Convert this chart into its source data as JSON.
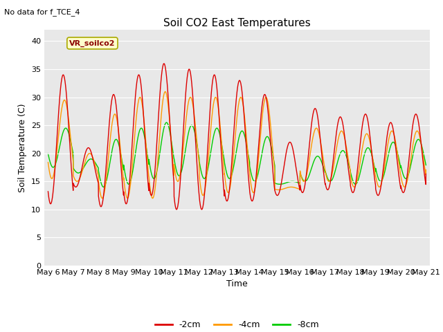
{
  "title": "Soil CO2 East Temperatures",
  "no_data_text": "No data for f_TCE_4",
  "annotation_text": "VR_soilco2",
  "xlabel": "Time",
  "ylabel": "Soil Temperature (C)",
  "ylim": [
    0,
    42
  ],
  "yticks": [
    0,
    5,
    10,
    15,
    20,
    25,
    30,
    35,
    40
  ],
  "x_start": 5.85,
  "x_end": 21.15,
  "xtick_labels": [
    "May 6",
    "May 7",
    "May 8",
    "May 9",
    "May 10",
    "May 11",
    "May 12",
    "May 13",
    "May 14",
    "May 15",
    "May 16",
    "May 17",
    "May 18",
    "May 19",
    "May 20",
    "May 21"
  ],
  "xtick_positions": [
    6,
    7,
    8,
    9,
    10,
    11,
    12,
    13,
    14,
    15,
    16,
    17,
    18,
    19,
    20,
    21
  ],
  "colors": {
    "2cm": "#dd0000",
    "4cm": "#ff9900",
    "8cm": "#00cc00"
  },
  "background_color": "#e8e8e8",
  "legend_labels": [
    "-2cm",
    "-4cm",
    "-8cm"
  ],
  "title_fontsize": 11,
  "label_fontsize": 9,
  "tick_fontsize": 8,
  "nodata_fontsize": 8,
  "annot_fontsize": 8
}
